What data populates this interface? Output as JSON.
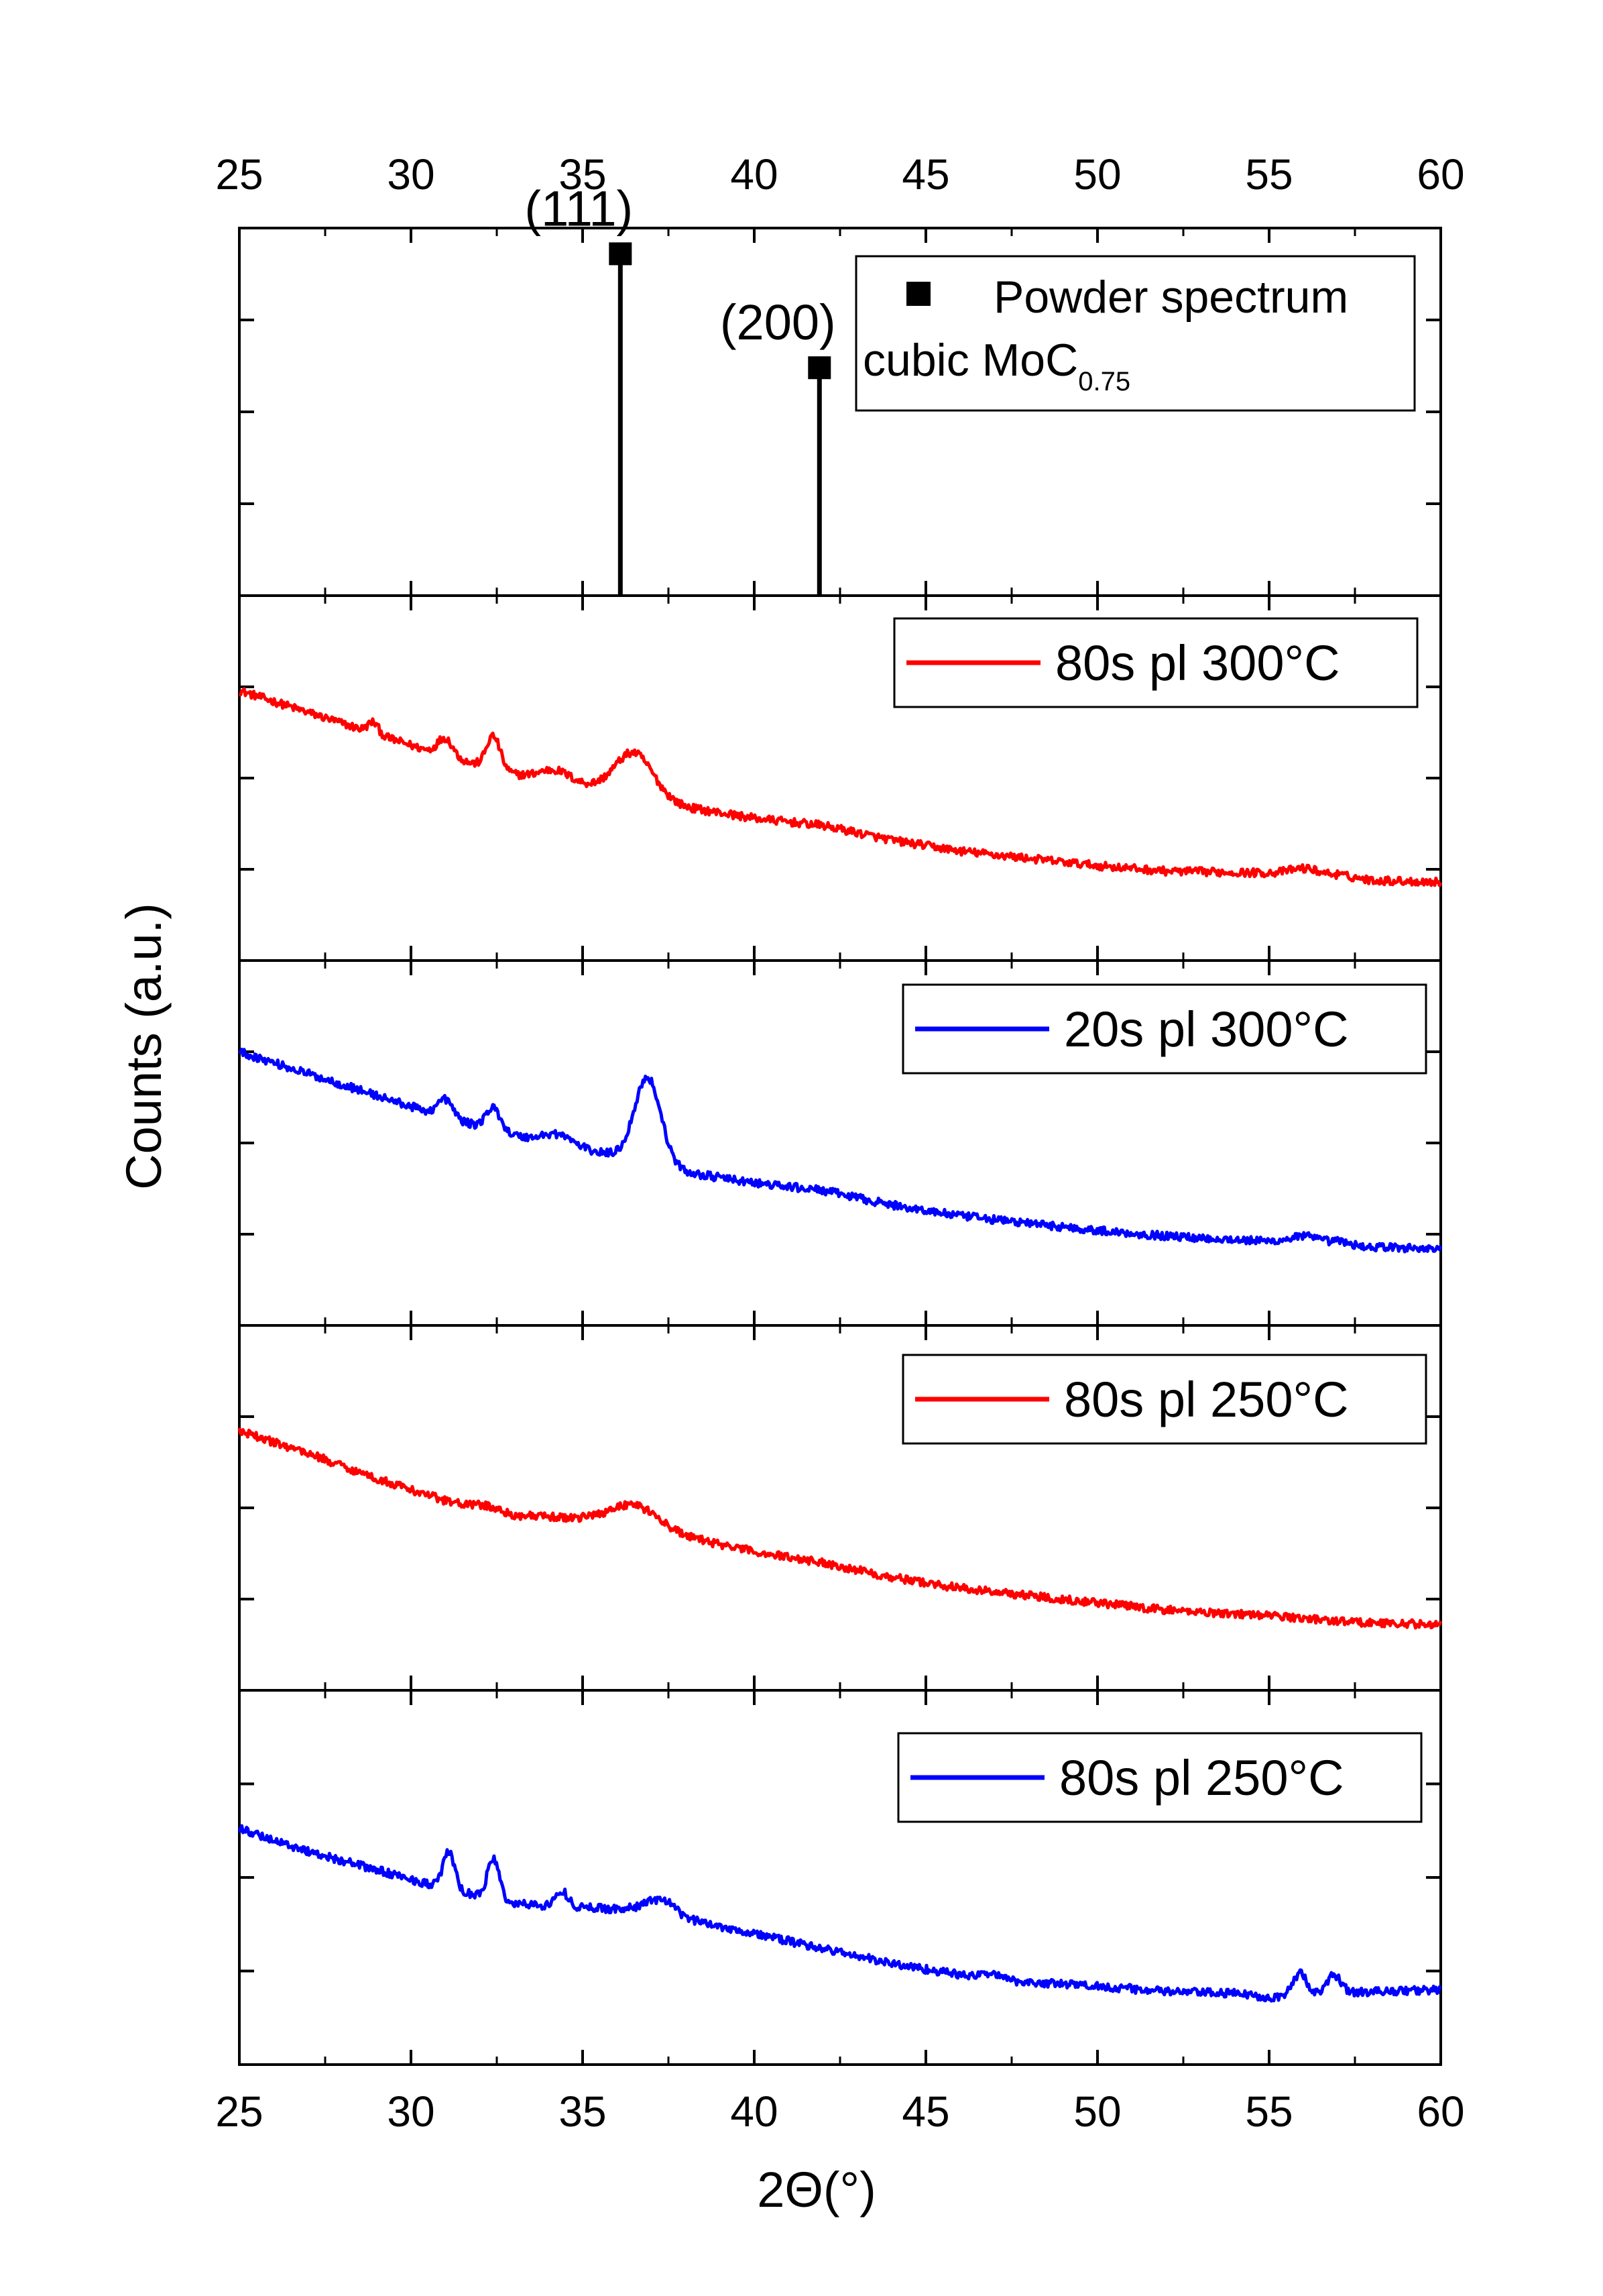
{
  "chart_data": {
    "type": "line",
    "title": "",
    "xlabel": "2Θ(°)",
    "ylabel": "Counts (a.u.)",
    "xlim": [
      25,
      60
    ],
    "x_ticks": [
      "25",
      "30",
      "35",
      "40",
      "45",
      "50",
      "55",
      "60"
    ],
    "grid": false,
    "panels": [
      {
        "type": "stem",
        "legend": {
          "marker": "square",
          "label_line1": "Powder spectrum",
          "label_line2_main": "cubic MoC",
          "label_line2_sub": "0.75",
          "placement": "top-right"
        },
        "ylim": [
          0,
          1
        ],
        "peaks": [
          {
            "x": 36.1,
            "y": 0.93,
            "label": "(111)"
          },
          {
            "x": 41.9,
            "y": 0.62,
            "label": "(200)"
          }
        ]
      },
      {
        "type": "line",
        "series_name": "80s pl 300°C",
        "color": "#ff0000",
        "ylim": [
          0,
          1
        ],
        "baseline": [
          [
            25,
            0.74
          ],
          [
            27,
            0.68
          ],
          [
            29,
            0.62
          ],
          [
            31,
            0.56
          ],
          [
            33,
            0.51
          ],
          [
            35,
            0.48
          ],
          [
            36.5,
            0.46
          ],
          [
            38,
            0.42
          ],
          [
            40,
            0.39
          ],
          [
            42,
            0.37
          ],
          [
            44,
            0.33
          ],
          [
            46,
            0.3
          ],
          [
            48,
            0.28
          ],
          [
            50,
            0.26
          ],
          [
            52,
            0.245
          ],
          [
            55,
            0.24
          ],
          [
            57,
            0.235
          ],
          [
            58,
            0.22
          ],
          [
            60,
            0.215
          ]
        ],
        "peaks": [
          [
            28.9,
            0.03,
            0.15
          ],
          [
            31.0,
            0.05,
            0.22
          ],
          [
            32.4,
            0.09,
            0.2
          ],
          [
            34.2,
            0.03,
            0.45
          ],
          [
            36.5,
            0.11,
            0.55
          ],
          [
            56.0,
            0.015,
            0.4
          ]
        ]
      },
      {
        "type": "line",
        "series_name": "20s pl 300°C",
        "color": "#0000ff",
        "ylim": [
          0,
          1
        ],
        "baseline": [
          [
            25,
            0.75
          ],
          [
            27,
            0.69
          ],
          [
            29,
            0.63
          ],
          [
            31,
            0.57
          ],
          [
            33,
            0.52
          ],
          [
            35,
            0.48
          ],
          [
            36.5,
            0.46
          ],
          [
            38,
            0.42
          ],
          [
            40,
            0.39
          ],
          [
            42,
            0.37
          ],
          [
            44,
            0.33
          ],
          [
            46,
            0.3
          ],
          [
            48,
            0.28
          ],
          [
            50,
            0.26
          ],
          [
            52,
            0.245
          ],
          [
            55,
            0.23
          ],
          [
            57,
            0.22
          ],
          [
            58,
            0.215
          ],
          [
            60,
            0.21
          ]
        ],
        "peaks": [
          [
            31.0,
            0.05,
            0.22
          ],
          [
            32.4,
            0.06,
            0.22
          ],
          [
            34.3,
            0.03,
            0.45
          ],
          [
            36.9,
            0.23,
            0.38
          ],
          [
            56.0,
            0.02,
            0.4
          ],
          [
            57.0,
            0.01,
            0.3
          ]
        ]
      },
      {
        "type": "line",
        "series_name": "80s pl 250°C",
        "color": "#ff0000",
        "ylim": [
          0,
          1
        ],
        "baseline": [
          [
            25,
            0.71
          ],
          [
            27,
            0.65
          ],
          [
            29,
            0.58
          ],
          [
            31,
            0.52
          ],
          [
            33,
            0.48
          ],
          [
            35,
            0.47
          ],
          [
            36.5,
            0.46
          ],
          [
            38,
            0.42
          ],
          [
            40,
            0.38
          ],
          [
            42,
            0.35
          ],
          [
            44,
            0.31
          ],
          [
            46,
            0.28
          ],
          [
            48,
            0.26
          ],
          [
            50,
            0.24
          ],
          [
            52,
            0.22
          ],
          [
            55,
            0.205
          ],
          [
            57,
            0.19
          ],
          [
            58,
            0.185
          ],
          [
            60,
            0.18
          ]
        ],
        "peaks": [
          [
            32.2,
            0.01,
            0.3
          ],
          [
            36.5,
            0.05,
            0.7
          ]
        ]
      },
      {
        "type": "line",
        "series_name": "80s pl 250°C",
        "color": "#0000ff",
        "ylim": [
          0,
          1
        ],
        "baseline": [
          [
            25,
            0.63
          ],
          [
            27,
            0.57
          ],
          [
            29,
            0.52
          ],
          [
            31,
            0.47
          ],
          [
            33,
            0.43
          ],
          [
            35,
            0.42
          ],
          [
            37.5,
            0.41
          ],
          [
            38,
            0.39
          ],
          [
            40,
            0.35
          ],
          [
            42,
            0.31
          ],
          [
            44,
            0.27
          ],
          [
            46,
            0.24
          ],
          [
            48,
            0.22
          ],
          [
            50,
            0.21
          ],
          [
            52,
            0.195
          ],
          [
            54,
            0.19
          ],
          [
            55,
            0.18
          ],
          [
            57,
            0.19
          ],
          [
            58,
            0.195
          ],
          [
            60,
            0.2
          ]
        ],
        "peaks": [
          [
            31.1,
            0.1,
            0.17
          ],
          [
            32.4,
            0.11,
            0.17
          ],
          [
            34.4,
            0.04,
            0.18
          ],
          [
            37.2,
            0.03,
            0.4
          ],
          [
            46.9,
            0.015,
            0.2
          ],
          [
            55.9,
            0.06,
            0.2
          ],
          [
            56.9,
            0.05,
            0.2
          ]
        ]
      }
    ]
  }
}
